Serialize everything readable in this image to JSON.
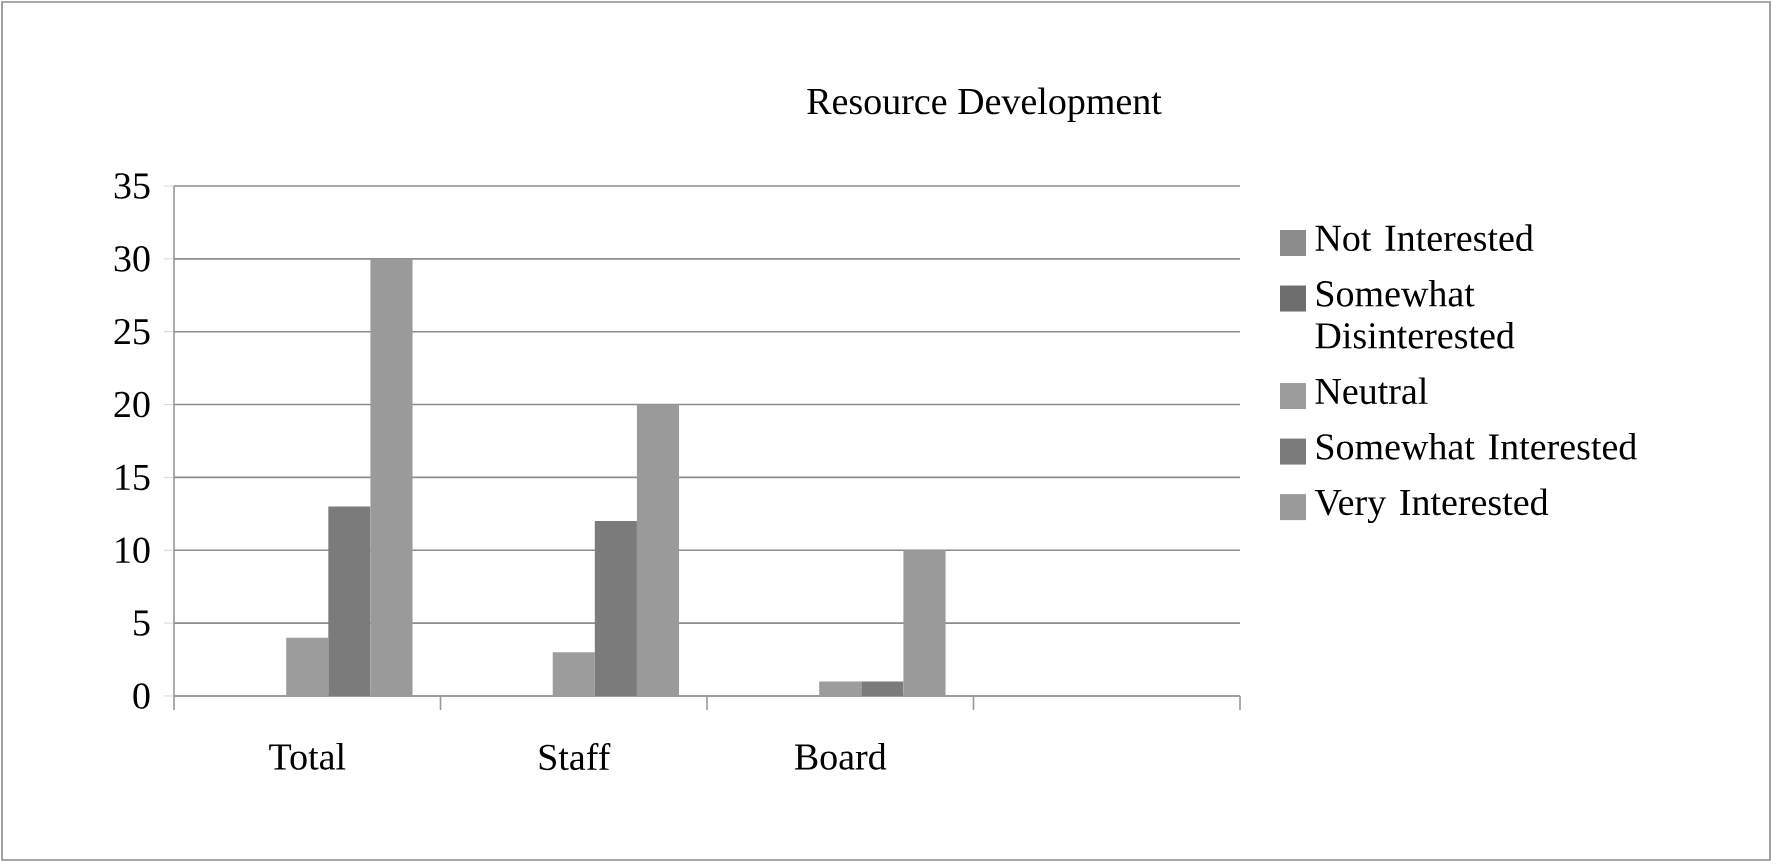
{
  "chart_data": {
    "type": "bar",
    "title": "Resource Development",
    "categories": [
      "Total",
      "Staff",
      "Board",
      null
    ],
    "series": [
      {
        "name": "Not Interested",
        "color": "#8c8c8c",
        "values": [
          null,
          null,
          null,
          null
        ]
      },
      {
        "name": "Somewhat Disinterested",
        "color": "#6e6e6e",
        "values": [
          null,
          null,
          null,
          null
        ]
      },
      {
        "name": "Neutral",
        "color": "#9c9c9c",
        "values": [
          4,
          3,
          1,
          null
        ]
      },
      {
        "name": "Somewhat Interested",
        "color": "#7b7b7b",
        "values": [
          13,
          12,
          1,
          null
        ]
      },
      {
        "name": "Very Interested",
        "color": "#9a9a9a",
        "values": [
          30,
          20,
          10,
          null
        ]
      }
    ],
    "ylim": [
      0,
      35
    ],
    "yticks": [
      0,
      5,
      10,
      15,
      20,
      25,
      30,
      35
    ],
    "grid": "y",
    "legend": "right"
  }
}
